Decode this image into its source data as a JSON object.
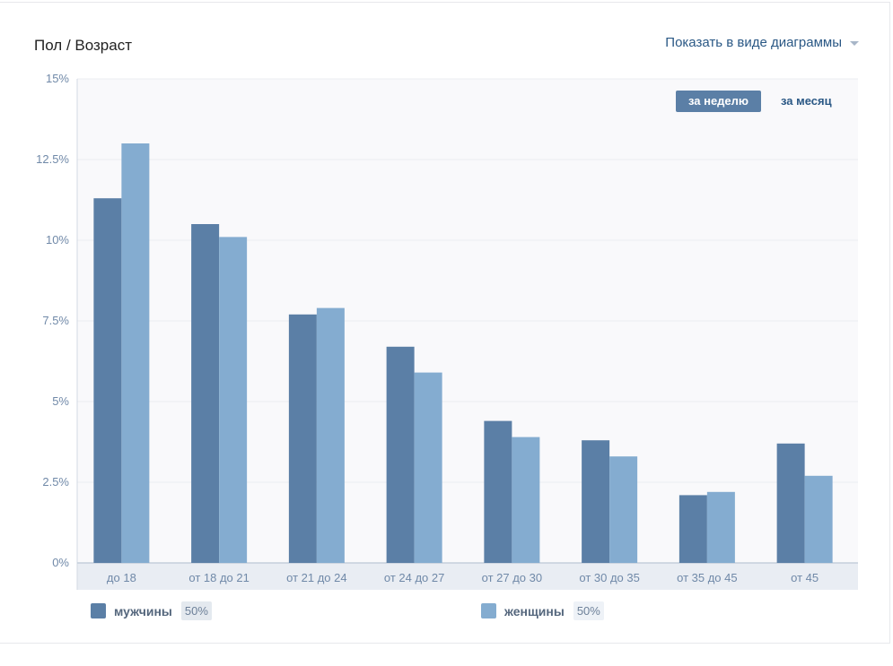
{
  "header": {
    "title": "Пол / Возраст",
    "view_toggle_label": "Показать в виде диаграммы"
  },
  "period": {
    "week_label": "за неделю",
    "month_label": "за месяц",
    "selected": "week"
  },
  "legend": {
    "men": {
      "label": "мужчины",
      "percent": "50%"
    },
    "women": {
      "label": "женщины",
      "percent": "50%"
    }
  },
  "colors": {
    "men": "#5b7fa6",
    "women": "#84acd0",
    "plot_bg": "#f9f9fb",
    "axis_band": "#e9edf3",
    "grid": "#ebedf1",
    "tick_text": "#7089a8"
  },
  "chart_data": {
    "type": "bar",
    "categories": [
      "до 18",
      "от 18 до 21",
      "от 21 до 24",
      "от 24 до 27",
      "от 27 до 30",
      "от 30 до 35",
      "от 35 до 45",
      "от 45"
    ],
    "series": [
      {
        "name": "мужчины",
        "values": [
          11.3,
          10.5,
          7.7,
          6.7,
          4.4,
          3.8,
          2.1,
          3.7
        ]
      },
      {
        "name": "женщины",
        "values": [
          13.0,
          10.1,
          7.9,
          5.9,
          3.9,
          3.3,
          2.2,
          2.7
        ]
      }
    ],
    "y_ticks": [
      "0%",
      "2.5%",
      "5%",
      "7.5%",
      "10%",
      "12.5%",
      "15%"
    ],
    "y_tick_values": [
      0,
      2.5,
      5,
      7.5,
      10,
      12.5,
      15
    ],
    "ylim": [
      0,
      15
    ],
    "grid": true,
    "legend_position": "bottom"
  }
}
